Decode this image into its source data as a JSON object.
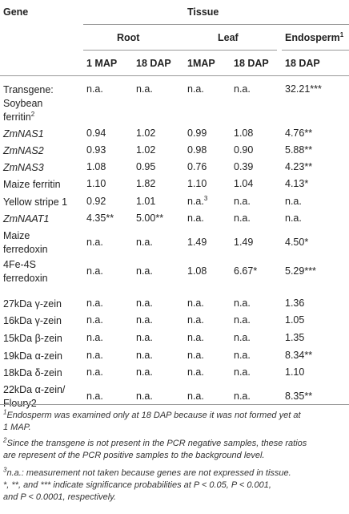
{
  "header": {
    "gene": "Gene",
    "tissue": "Tissue",
    "root": "Root",
    "leaf": "Leaf",
    "endosperm": "Endosperm",
    "endosperm_sup": "1",
    "cols": [
      "1 MAP",
      "18 DAP",
      "1MAP",
      "18 DAP",
      "18 DAP"
    ]
  },
  "rows": [
    {
      "gene_lines": [
        "Transgene:",
        "Soybean",
        "ferritin"
      ],
      "gene_sup": "2",
      "italic": false,
      "values": [
        "n.a.",
        "n.a.",
        "n.a.",
        "n.a.",
        "32.21***"
      ]
    },
    {
      "gene_lines": [
        "ZmNAS1"
      ],
      "italic": true,
      "values": [
        "0.94",
        "1.02",
        "0.99",
        "1.08",
        "4.76**"
      ]
    },
    {
      "gene_lines": [
        "ZmNAS2"
      ],
      "italic": true,
      "values": [
        "0.93",
        "1.02",
        "0.98",
        "0.90",
        "5.88**"
      ]
    },
    {
      "gene_lines": [
        "ZmNAS3"
      ],
      "italic": true,
      "values": [
        "1.08",
        "0.95",
        "0.76",
        "0.39",
        "4.23**"
      ]
    },
    {
      "gene_lines": [
        "Maize ferritin"
      ],
      "italic": false,
      "values": [
        "1.10",
        "1.82",
        "1.10",
        "1.04",
        "4.13*"
      ]
    },
    {
      "gene_lines": [
        "Yellow stripe 1"
      ],
      "italic": false,
      "values": [
        "0.92",
        "1.01",
        "n.a.",
        "n.a.",
        "n.a."
      ],
      "value_sup_index": 2,
      "value_sup": "3"
    },
    {
      "gene_lines": [
        "ZmNAAT1"
      ],
      "italic": true,
      "values": [
        "4.35**",
        "5.00**",
        "n.a.",
        "n.a.",
        "n.a."
      ]
    },
    {
      "gene_lines": [
        "Maize",
        "ferredoxin"
      ],
      "italic": false,
      "values": [
        "n.a.",
        "n.a.",
        "1.49",
        "1.49",
        "4.50*"
      ]
    },
    {
      "gene_lines": [
        "4Fe-4S",
        "ferredoxin"
      ],
      "italic": false,
      "values": [
        "n.a.",
        "n.a.",
        "1.08",
        "6.67*",
        "5.29***"
      ]
    },
    {
      "gene_lines": [
        "27kDa γ-zein"
      ],
      "italic": false,
      "values": [
        "n.a.",
        "n.a.",
        "n.a.",
        "n.a.",
        "1.36"
      ]
    },
    {
      "gene_lines": [
        "16kDa γ-zein"
      ],
      "italic": false,
      "values": [
        "n.a.",
        "n.a.",
        "n.a.",
        "n.a.",
        "1.05"
      ]
    },
    {
      "gene_lines": [
        "15kDa β-zein"
      ],
      "italic": false,
      "values": [
        "n.a.",
        "n.a.",
        "n.a.",
        "n.a.",
        "1.35"
      ]
    },
    {
      "gene_lines": [
        "19kDa α-zein"
      ],
      "italic": false,
      "values": [
        "n.a.",
        "n.a.",
        "n.a.",
        "n.a.",
        "8.34**"
      ]
    },
    {
      "gene_lines": [
        "18kDa δ-zein"
      ],
      "italic": false,
      "values": [
        "n.a.",
        "n.a.",
        "n.a.",
        "n.a.",
        "1.10"
      ]
    },
    {
      "gene_lines": [
        "22kDa α-zein/",
        "Floury2"
      ],
      "italic": false,
      "values": [
        "n.a.",
        "n.a.",
        "n.a.",
        "n.a.",
        "8.35**"
      ]
    }
  ],
  "footnotes": [
    {
      "sup": "1",
      "lines": [
        "Endosperm was examined only at 18 DAP because it was not formed yet at",
        "1 MAP."
      ]
    },
    {
      "sup": "2",
      "lines": [
        "Since the transgene is not present in the PCR negative samples, these ratios",
        "are represent of the PCR positive samples to the background level."
      ]
    },
    {
      "sup": "3",
      "lines": [
        "n.a.: measurement not taken because genes are not expressed in tissue."
      ]
    },
    {
      "sup": "",
      "lines": [
        "*, **, and *** indicate significance probabilities at P < 0.05, P < 0.001,",
        "and P < 0.0001, respectively."
      ]
    }
  ]
}
